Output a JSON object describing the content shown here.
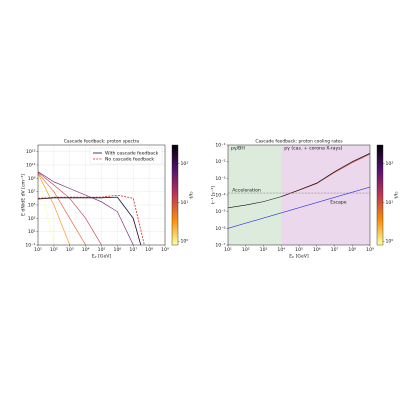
{
  "chart_data": [
    {
      "type": "line",
      "title": "Cascade feedback: proton spectra",
      "x_label": "Eₚ [GeV]",
      "y_label": "E dN/dE dV [cm⁻³]",
      "log_x": true,
      "log_y": true,
      "grid": true,
      "legend": "upper right",
      "xlim": [
        10,
        1000000000
      ],
      "ylim": [
        0.1,
        100000000000000
      ],
      "xticks": [
        {
          "value": 10,
          "label": "10¹"
        },
        {
          "value": 100,
          "label": "10²"
        },
        {
          "value": 1000,
          "label": "10³"
        },
        {
          "value": 10000,
          "label": "10⁴"
        },
        {
          "value": 100000,
          "label": "10⁵"
        },
        {
          "value": 1000000,
          "label": "10⁶"
        },
        {
          "value": 10000000,
          "label": "10⁷"
        },
        {
          "value": 100000000,
          "label": "10⁸"
        },
        {
          "value": 1000000000,
          "label": "10⁹"
        }
      ],
      "yticks": [
        {
          "value": 0.1,
          "label": "10⁻¹"
        },
        {
          "value": 10,
          "label": "10¹"
        },
        {
          "value": 1000,
          "label": "10³"
        },
        {
          "value": 100000,
          "label": "10⁵"
        },
        {
          "value": 10000000,
          "label": "10⁷"
        },
        {
          "value": 1000000000,
          "label": "10⁹"
        },
        {
          "value": 100000000000,
          "label": "10¹¹"
        },
        {
          "value": 10000000000000,
          "label": "10¹³"
        }
      ],
      "series": [
        {
          "color": "#fcffa4",
          "x": [
            10,
            100
          ],
          "values": [
            3000000000,
            0.1
          ]
        },
        {
          "color": "#f98e09",
          "x": [
            10,
            100,
            1000
          ],
          "values": [
            5000000000,
            100000,
            0.1
          ]
        },
        {
          "color": "#e45a31",
          "x": [
            10,
            100,
            1000,
            10000
          ],
          "values": [
            6000000000,
            10000000,
            1000,
            0.1
          ]
        },
        {
          "color": "#bc3754",
          "x": [
            10,
            100,
            1000,
            10000,
            100000
          ],
          "values": [
            8000000000,
            100000000,
            1000000,
            1000,
            0.1
          ]
        },
        {
          "color": "#6a176e",
          "x": [
            10,
            100,
            1000,
            10000,
            100000,
            1000000,
            10000000
          ],
          "values": [
            10000000000,
            300000000,
            30000000,
            3000000,
            300000,
            10000,
            0.1
          ]
        },
        {
          "name": "With cascade feedback",
          "color": "#1b1030",
          "x": [
            10,
            100,
            1000,
            10000,
            100000,
            1000000,
            10000000,
            30000000
          ],
          "values": [
            800000,
            1200000,
            1200000,
            1200000,
            1200000,
            1500000,
            1000,
            0.1
          ]
        },
        {
          "name": "No cascade feedback",
          "color": "#d62728",
          "dashed": true,
          "x": [
            10,
            100,
            1000,
            10000,
            100000,
            1000000,
            10000000,
            50000000
          ],
          "values": [
            1000000,
            1500000,
            1500000,
            1500000,
            1500000,
            3000000,
            1000000,
            0.1
          ]
        }
      ],
      "colorbar": {
        "label": "t/t₀",
        "lim": [
          0.8,
          300
        ],
        "colors": [
          "#fcffa4",
          "#f98e09",
          "#bc3754",
          "#57106e",
          "#000004"
        ],
        "ticks": [
          {
            "value": 1,
            "label": "10⁰"
          },
          {
            "value": 10,
            "label": "10¹"
          },
          {
            "value": 100,
            "label": "10²"
          }
        ]
      }
    },
    {
      "type": "line",
      "title": "Cascade feedback: proton cooling rates",
      "x_label": "Eₚ [GeV]",
      "y_label": "t⁻¹ [s⁻¹]",
      "log_x": true,
      "log_y": true,
      "grid": false,
      "xlim": [
        10,
        1000000000
      ],
      "ylim": [
        1e-07,
        0.1
      ],
      "xticks": [
        {
          "value": 10,
          "label": "10¹"
        },
        {
          "value": 100,
          "label": "10²"
        },
        {
          "value": 1000,
          "label": "10³"
        },
        {
          "value": 10000,
          "label": "10⁴"
        },
        {
          "value": 100000,
          "label": "10⁵"
        },
        {
          "value": 1000000,
          "label": "10⁶"
        },
        {
          "value": 10000000,
          "label": "10⁷"
        },
        {
          "value": 100000000,
          "label": "10⁸"
        },
        {
          "value": 1000000000,
          "label": "10⁹"
        }
      ],
      "yticks": [
        {
          "value": 1e-07,
          "label": "10⁻⁷"
        },
        {
          "value": 1e-06,
          "label": "10⁻⁶"
        },
        {
          "value": 1e-05,
          "label": "10⁻⁵"
        },
        {
          "value": 0.0001,
          "label": "10⁻⁴"
        },
        {
          "value": 0.001,
          "label": "10⁻³"
        },
        {
          "value": 0.01,
          "label": "10⁻²"
        },
        {
          "value": 0.1,
          "label": "10⁻¹"
        }
      ],
      "regions": [
        {
          "label": "pγ/BH",
          "from": 10,
          "to": 10000,
          "color": "#dcebdc",
          "text_color": "#2e8b2e"
        },
        {
          "label": "pγ (cas. + corona X-rays)",
          "from": 10000,
          "to": 1000000000,
          "color": "#ecd8ec",
          "text_color": "#8b2a8b"
        }
      ],
      "series": [
        {
          "color": "#e9652e",
          "x": [
            10000,
            100000,
            1000000,
            10000000,
            100000000,
            1000000000
          ],
          "values": [
            8e-05,
            0.00019,
            0.00048,
            0.0022,
            0.0085,
            0.028
          ]
        },
        {
          "color": "#7b2a7a",
          "x": [
            10000,
            100000,
            1000000,
            10000000,
            100000000,
            1000000000
          ],
          "values": [
            8e-05,
            0.0002,
            0.0005,
            0.0024,
            0.0095,
            0.03
          ]
        },
        {
          "color": "#111111",
          "x": [
            10,
            100,
            1000,
            10000,
            100000,
            1000000,
            10000000,
            100000000,
            1000000000
          ],
          "values": [
            1.7e-05,
            2.5e-05,
            4e-05,
            8e-05,
            0.0002,
            0.00052,
            0.0025,
            0.01,
            0.032
          ]
        },
        {
          "label": "Acceleration",
          "color": "#888888",
          "dashed": true,
          "x": [
            10,
            1000000000
          ],
          "values": [
            0.00013,
            0.00013
          ]
        },
        {
          "label": "Escape",
          "color": "#1f2fe0",
          "x": [
            10,
            1000000000
          ],
          "values": [
            1e-06,
            0.0003
          ]
        }
      ],
      "colorbar": {
        "label": "t/t₀",
        "lim": [
          0.8,
          300
        ],
        "colors": [
          "#fcffa4",
          "#f98e09",
          "#bc3754",
          "#57106e",
          "#000004"
        ],
        "ticks": [
          {
            "value": 1,
            "label": "10⁰"
          },
          {
            "value": 10,
            "label": "10¹"
          },
          {
            "value": 100,
            "label": "10²"
          }
        ]
      }
    }
  ]
}
